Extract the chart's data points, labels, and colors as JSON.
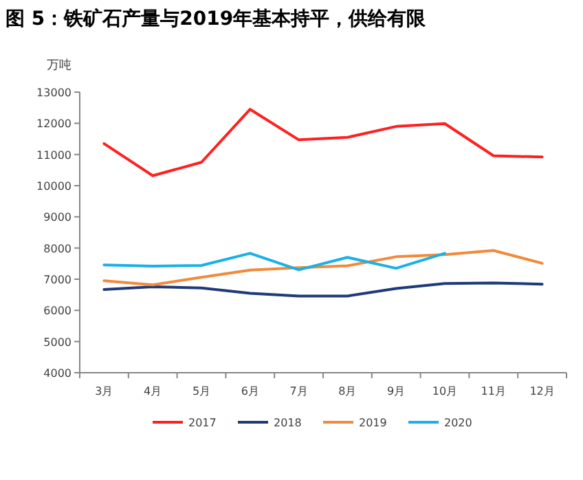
{
  "chart_data": {
    "type": "line",
    "title": "图 5：铁矿石产量与2019年基本持平，供给有限",
    "ylabel": "万吨",
    "categories": [
      "3月",
      "4月",
      "5月",
      "6月",
      "7月",
      "8月",
      "9月",
      "10月",
      "11月",
      "12月"
    ],
    "series": [
      {
        "name": "2017",
        "color": "#ff2020",
        "values": [
          11350,
          10320,
          10750,
          12450,
          11470,
          11550,
          11900,
          11990,
          10960,
          10920
        ]
      },
      {
        "name": "2018",
        "color": "#1f3a7a",
        "values": [
          6670,
          6760,
          6720,
          6550,
          6460,
          6460,
          6700,
          6860,
          6880,
          6840
        ]
      },
      {
        "name": "2019",
        "color": "#f08a3c",
        "values": [
          6950,
          6820,
          7060,
          7290,
          7370,
          7430,
          7720,
          7790,
          7920,
          7510
        ]
      },
      {
        "name": "2020",
        "color": "#1ab0e8",
        "values": [
          7460,
          7420,
          7440,
          7830,
          7300,
          7700,
          7350,
          7830,
          null,
          null
        ]
      }
    ],
    "ylim": [
      4000,
      13000
    ],
    "yticks": [
      4000,
      5000,
      6000,
      7000,
      8000,
      9000,
      10000,
      11000,
      12000,
      13000
    ],
    "grid": false,
    "legend": "bottom",
    "marker": "none",
    "line_style": "solid"
  }
}
